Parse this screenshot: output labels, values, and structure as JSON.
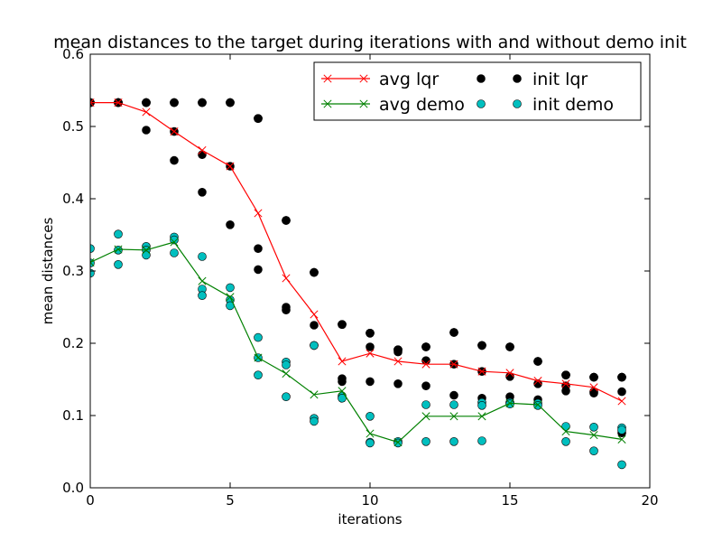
{
  "chart_data": {
    "type": "scatter",
    "title": "mean distances to the target during iterations with and without demo init",
    "xlabel": "iterations",
    "ylabel": "mean distances",
    "xlim": [
      0,
      20
    ],
    "ylim": [
      0,
      0.6
    ],
    "xticks": [
      0,
      5,
      10,
      15,
      20
    ],
    "yticks": [
      0.0,
      0.1,
      0.2,
      0.3,
      0.4,
      0.5,
      0.6
    ],
    "grid": false,
    "legend_position": "top-right",
    "legend_columns": 2,
    "series": [
      {
        "name": "avg lqr",
        "kind": "line-x",
        "color": "#ff0000",
        "x": [
          0,
          1,
          2,
          3,
          4,
          5,
          6,
          7,
          8,
          9,
          10,
          11,
          12,
          13,
          14,
          15,
          16,
          17,
          18,
          19
        ],
        "y": [
          0.533,
          0.533,
          0.52,
          0.493,
          0.467,
          0.445,
          0.38,
          0.29,
          0.24,
          0.175,
          0.186,
          0.175,
          0.171,
          0.171,
          0.161,
          0.159,
          0.148,
          0.144,
          0.139,
          0.12
        ]
      },
      {
        "name": "avg demo",
        "kind": "line-x",
        "color": "#008000",
        "x": [
          0,
          1,
          2,
          3,
          4,
          5,
          6,
          7,
          8,
          9,
          10,
          11,
          12,
          13,
          14,
          15,
          16,
          17,
          18,
          19
        ],
        "y": [
          0.312,
          0.33,
          0.329,
          0.34,
          0.286,
          0.264,
          0.18,
          0.158,
          0.129,
          0.134,
          0.075,
          0.063,
          0.099,
          0.099,
          0.099,
          0.117,
          0.115,
          0.078,
          0.073,
          0.067
        ]
      },
      {
        "name": "init lqr",
        "kind": "dots",
        "color": "#000000",
        "edge": "#000000",
        "points": [
          [
            0,
            0.533
          ],
          [
            0,
            0.533
          ],
          [
            0,
            0.533
          ],
          [
            0,
            0.533
          ],
          [
            0,
            0.533
          ],
          [
            1,
            0.533
          ],
          [
            1,
            0.533
          ],
          [
            1,
            0.533
          ],
          [
            1,
            0.533
          ],
          [
            1,
            0.533
          ],
          [
            2,
            0.533
          ],
          [
            2,
            0.533
          ],
          [
            2,
            0.533
          ],
          [
            2,
            0.495
          ],
          [
            2,
            0.533
          ],
          [
            3,
            0.533
          ],
          [
            3,
            0.533
          ],
          [
            3,
            0.493
          ],
          [
            3,
            0.453
          ],
          [
            3,
            0.533
          ],
          [
            4,
            0.533
          ],
          [
            4,
            0.533
          ],
          [
            4,
            0.461
          ],
          [
            4,
            0.409
          ],
          [
            4,
            0.533
          ],
          [
            5,
            0.533
          ],
          [
            5,
            0.533
          ],
          [
            5,
            0.445
          ],
          [
            5,
            0.364
          ],
          [
            5,
            0.533
          ],
          [
            6,
            0.511
          ],
          [
            6,
            0.331
          ],
          [
            6,
            0.302
          ],
          [
            6,
            0.511
          ],
          [
            6,
            0.511
          ],
          [
            7,
            0.37
          ],
          [
            7,
            0.25
          ],
          [
            7,
            0.246
          ],
          [
            7,
            0.37
          ],
          [
            7,
            0.37
          ],
          [
            8,
            0.298
          ],
          [
            8,
            0.225
          ],
          [
            8,
            0.197
          ],
          [
            8,
            0.298
          ],
          [
            8,
            0.298
          ],
          [
            9,
            0.226
          ],
          [
            9,
            0.151
          ],
          [
            9,
            0.147
          ],
          [
            9,
            0.226
          ],
          [
            9,
            0.226
          ],
          [
            10,
            0.214
          ],
          [
            10,
            0.195
          ],
          [
            10,
            0.147
          ],
          [
            10,
            0.214
          ],
          [
            10,
            0.214
          ],
          [
            11,
            0.191
          ],
          [
            11,
            0.188
          ],
          [
            11,
            0.144
          ],
          [
            11,
            0.191
          ],
          [
            11,
            0.191
          ],
          [
            12,
            0.195
          ],
          [
            12,
            0.176
          ],
          [
            12,
            0.141
          ],
          [
            12,
            0.195
          ],
          [
            12,
            0.195
          ],
          [
            13,
            0.215
          ],
          [
            13,
            0.171
          ],
          [
            13,
            0.128
          ],
          [
            13,
            0.215
          ],
          [
            13,
            0.215
          ],
          [
            14,
            0.197
          ],
          [
            14,
            0.161
          ],
          [
            14,
            0.124
          ],
          [
            14,
            0.197
          ],
          [
            14,
            0.197
          ],
          [
            15,
            0.195
          ],
          [
            15,
            0.154
          ],
          [
            15,
            0.126
          ],
          [
            15,
            0.195
          ],
          [
            15,
            0.195
          ],
          [
            16,
            0.175
          ],
          [
            16,
            0.144
          ],
          [
            16,
            0.122
          ],
          [
            16,
            0.175
          ],
          [
            16,
            0.175
          ],
          [
            17,
            0.156
          ],
          [
            17,
            0.141
          ],
          [
            17,
            0.134
          ],
          [
            17,
            0.156
          ],
          [
            17,
            0.156
          ],
          [
            18,
            0.153
          ],
          [
            18,
            0.133
          ],
          [
            18,
            0.131
          ],
          [
            18,
            0.153
          ],
          [
            18,
            0.153
          ],
          [
            19,
            0.153
          ],
          [
            19,
            0.133
          ],
          [
            19,
            0.076
          ],
          [
            19,
            0.153
          ],
          [
            19,
            0.153
          ]
        ]
      },
      {
        "name": "init demo",
        "kind": "dots",
        "color": "#00bfbf",
        "edge": "#000000",
        "points": [
          [
            0,
            0.331
          ],
          [
            0,
            0.311
          ],
          [
            0,
            0.297
          ],
          [
            1,
            0.351
          ],
          [
            1,
            0.329
          ],
          [
            1,
            0.309
          ],
          [
            2,
            0.334
          ],
          [
            2,
            0.329
          ],
          [
            2,
            0.322
          ],
          [
            3,
            0.347
          ],
          [
            3,
            0.343
          ],
          [
            3,
            0.325
          ],
          [
            4,
            0.32
          ],
          [
            4,
            0.275
          ],
          [
            4,
            0.266
          ],
          [
            5,
            0.277
          ],
          [
            5,
            0.26
          ],
          [
            5,
            0.252
          ],
          [
            6,
            0.208
          ],
          [
            6,
            0.18
          ],
          [
            6,
            0.156
          ],
          [
            7,
            0.174
          ],
          [
            7,
            0.17
          ],
          [
            7,
            0.126
          ],
          [
            8,
            0.197
          ],
          [
            8,
            0.096
          ],
          [
            8,
            0.092
          ],
          [
            9,
            0.127
          ],
          [
            9,
            0.124
          ],
          [
            10,
            0.099
          ],
          [
            10,
            0.063
          ],
          [
            10,
            0.062
          ],
          [
            11,
            0.064
          ],
          [
            11,
            0.062
          ],
          [
            12,
            0.115
          ],
          [
            12,
            0.064
          ],
          [
            13,
            0.115
          ],
          [
            13,
            0.064
          ],
          [
            14,
            0.118
          ],
          [
            14,
            0.114
          ],
          [
            14,
            0.065
          ],
          [
            15,
            0.118
          ],
          [
            15,
            0.116
          ],
          [
            16,
            0.117
          ],
          [
            16,
            0.114
          ],
          [
            17,
            0.085
          ],
          [
            17,
            0.064
          ],
          [
            18,
            0.084
          ],
          [
            18,
            0.051
          ],
          [
            19,
            0.083
          ],
          [
            19,
            0.08
          ],
          [
            19,
            0.032
          ]
        ]
      }
    ]
  }
}
